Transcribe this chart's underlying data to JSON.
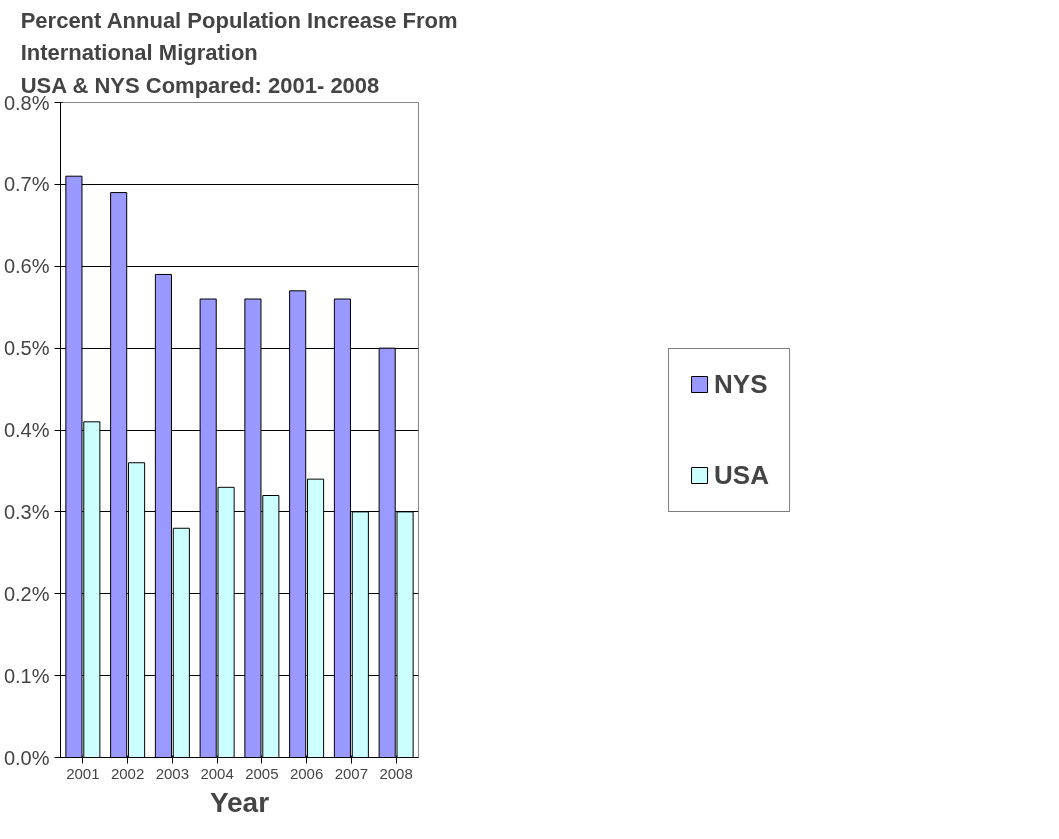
{
  "chart_data": {
    "type": "bar",
    "title": "Percent Annual Population Increase From\nInternational Migration\nUSA & NYS Compared: 2001- 2008",
    "xlabel": "Year",
    "categories": [
      "2001",
      "2002",
      "2003",
      "2004",
      "2005",
      "2006",
      "2007",
      "2008"
    ],
    "series": [
      {
        "name": "NYS",
        "color": "#9999ff",
        "values": [
          0.71,
          0.69,
          0.59,
          0.56,
          0.56,
          0.57,
          0.56,
          0.5
        ]
      },
      {
        "name": "USA",
        "color": "#ccffff",
        "values": [
          0.41,
          0.36,
          0.28,
          0.33,
          0.32,
          0.34,
          0.3,
          0.3
        ]
      }
    ],
    "ylim": [
      0,
      0.8
    ],
    "yticks": [
      {
        "value": 0,
        "label": "0.0%"
      },
      {
        "value": 0.1,
        "label": "0.1%"
      },
      {
        "value": 0.2,
        "label": "0.2%"
      },
      {
        "value": 0.3,
        "label": "0.3%"
      },
      {
        "value": 0.4,
        "label": "0.4%"
      },
      {
        "value": 0.5,
        "label": "0.5%"
      },
      {
        "value": 0.6,
        "label": "0.6%"
      },
      {
        "value": 0.7,
        "label": "0.7%"
      },
      {
        "value": 0.8,
        "label": "0.8%"
      }
    ],
    "grid": "y",
    "legend": "right"
  }
}
